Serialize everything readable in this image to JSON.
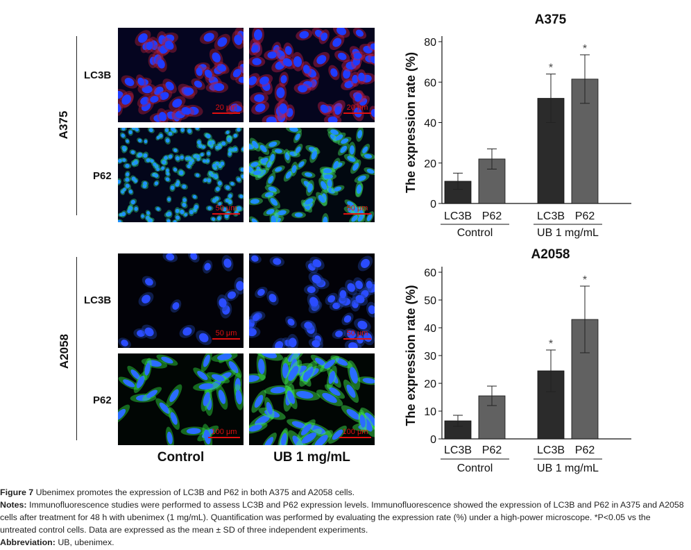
{
  "panels": {
    "rows": [
      {
        "cell_line": "A375",
        "markers": [
          "LC3B",
          "P62"
        ],
        "scale_bars": [
          [
            "20 μm",
            "20 μm"
          ],
          [
            "50 μm",
            "50 μm"
          ]
        ]
      },
      {
        "cell_line": "A2058",
        "markers": [
          "LC3B",
          "P62"
        ],
        "scale_bars": [
          [
            "50 μm",
            "50 μm"
          ],
          [
            "100 μm",
            "100 μm"
          ]
        ]
      }
    ],
    "columns": [
      "Control",
      "UB 1 mg/mL"
    ]
  },
  "chart_data": [
    {
      "type": "bar",
      "title": "A375",
      "ylabel": "The expression rate (%)",
      "ylim": [
        0,
        80
      ],
      "yticks": [
        0,
        20,
        40,
        60,
        80
      ],
      "groups": [
        "Control",
        "UB 1 mg/mL"
      ],
      "categories": [
        "LC3B",
        "P62",
        "LC3B",
        "P62"
      ],
      "series": [
        {
          "values": [
            11,
            22,
            52,
            61.5
          ],
          "errors": [
            4,
            5,
            12,
            12
          ]
        }
      ],
      "significance": [
        "",
        "",
        "*",
        "*"
      ],
      "colors": [
        "#2b2b2b",
        "#616161",
        "#2b2b2b",
        "#616161"
      ]
    },
    {
      "type": "bar",
      "title": "A2058",
      "ylabel": "The expression rate (%)",
      "ylim": [
        0,
        60
      ],
      "yticks": [
        0,
        10,
        20,
        30,
        40,
        50,
        60
      ],
      "groups": [
        "Control",
        "UB 1 mg/mL"
      ],
      "categories": [
        "LC3B",
        "P62",
        "LC3B",
        "P62"
      ],
      "series": [
        {
          "values": [
            6.5,
            15.5,
            24.5,
            43
          ],
          "errors": [
            2,
            3.5,
            7.5,
            12
          ]
        }
      ],
      "significance": [
        "",
        "",
        "*",
        "*"
      ],
      "colors": [
        "#2b2b2b",
        "#616161",
        "#2b2b2b",
        "#616161"
      ]
    }
  ],
  "caption": {
    "figure_label": "Figure 7",
    "figure_text": "Ubenimex promotes the expression of LC3B and P62 in both A375 and A2058 cells.",
    "notes_label": "Notes:",
    "notes_text": "Immunofluorescence studies were performed to assess LC3B and P62 expression levels. Immunofluorescence showed the expression of LC3B and P62 in A375 and A2058 cells after treatment for 48 h with ubenimex (1 mg/mL). Quantification was performed by evaluating the expression rate (%) under a high-power microscope. *P<0.05 vs the untreated control cells. Data are expressed as the mean ± SD of three independent experiments.",
    "abbrev_label": "Abbreviation:",
    "abbrev_text": "UB, ubenimex."
  }
}
